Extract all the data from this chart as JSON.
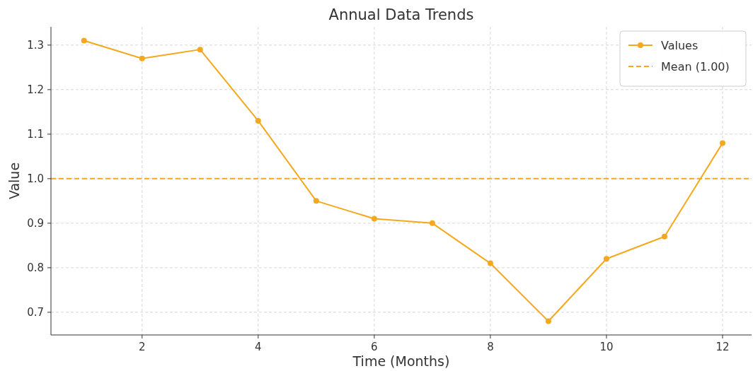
{
  "chart_data": {
    "type": "line",
    "title": "Annual Data Trends",
    "xlabel": "Time (Months)",
    "ylabel": "Value",
    "x": [
      1,
      2,
      3,
      4,
      5,
      6,
      7,
      8,
      9,
      10,
      11,
      12
    ],
    "series": [
      {
        "name": "Values",
        "color": "#f4a81d",
        "values": [
          1.31,
          1.27,
          1.29,
          1.13,
          0.95,
          0.91,
          0.9,
          0.81,
          0.68,
          0.82,
          0.87,
          1.08
        ]
      }
    ],
    "xlim": [
      0.43,
      12.5
    ],
    "xticks": [
      2,
      4,
      6,
      8,
      10,
      12
    ],
    "ylim": [
      0.649,
      1.341
    ],
    "yticks": [
      {
        "value": 0.7,
        "label": "0.7"
      },
      {
        "value": 0.8,
        "label": "0.8"
      },
      {
        "value": 0.9,
        "label": "0.9"
      },
      {
        "value": 1.0,
        "label": "1.0"
      },
      {
        "value": 1.1,
        "label": "1.1"
      },
      {
        "value": 1.2,
        "label": "1.2"
      },
      {
        "value": 1.3,
        "label": "1.3"
      }
    ],
    "ref_lines": [
      {
        "axis": "y",
        "value": 1.0,
        "label": "Mean (1.00)",
        "color": "#f4a81d",
        "line_style": "dashed"
      }
    ],
    "grid": true,
    "legend": "top right",
    "marker": "circle",
    "line_style": "solid"
  }
}
